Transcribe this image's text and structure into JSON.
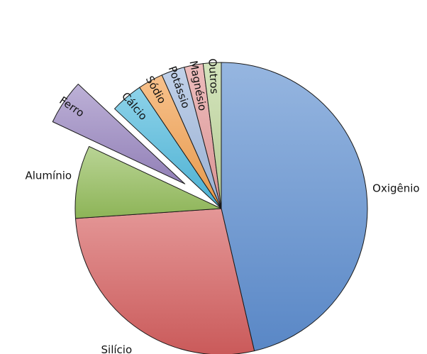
{
  "chart_data": {
    "type": "pie",
    "title": "",
    "slices": [
      {
        "label": "Oxigênio",
        "value": 46.6,
        "color": "#5e8ed0",
        "exploded": false
      },
      {
        "label": "Silício",
        "value": 27.7,
        "color": "#d55f5f",
        "exploded": false
      },
      {
        "label": "Alumínio",
        "value": 8.1,
        "color": "#94bd5c",
        "exploded": false
      },
      {
        "label": "Ferro",
        "value": 5.0,
        "color": "#9a87c1",
        "exploded": true
      },
      {
        "label": "Cálcio",
        "value": 3.6,
        "color": "#4fb9dd",
        "exploded": false
      },
      {
        "label": "Sódio",
        "value": 2.8,
        "color": "#f2a04e",
        "exploded": false
      },
      {
        "label": "Potássio",
        "value": 2.6,
        "color": "#9fb8dd",
        "exploded": false
      },
      {
        "label": "Magnésio",
        "value": 2.1,
        "color": "#e49a9a",
        "exploded": false
      },
      {
        "label": "Outros",
        "value": 2.0,
        "color": "#bdd59a",
        "exploded": false
      }
    ],
    "direction": "clockwise",
    "start": "top",
    "legend": "none"
  }
}
